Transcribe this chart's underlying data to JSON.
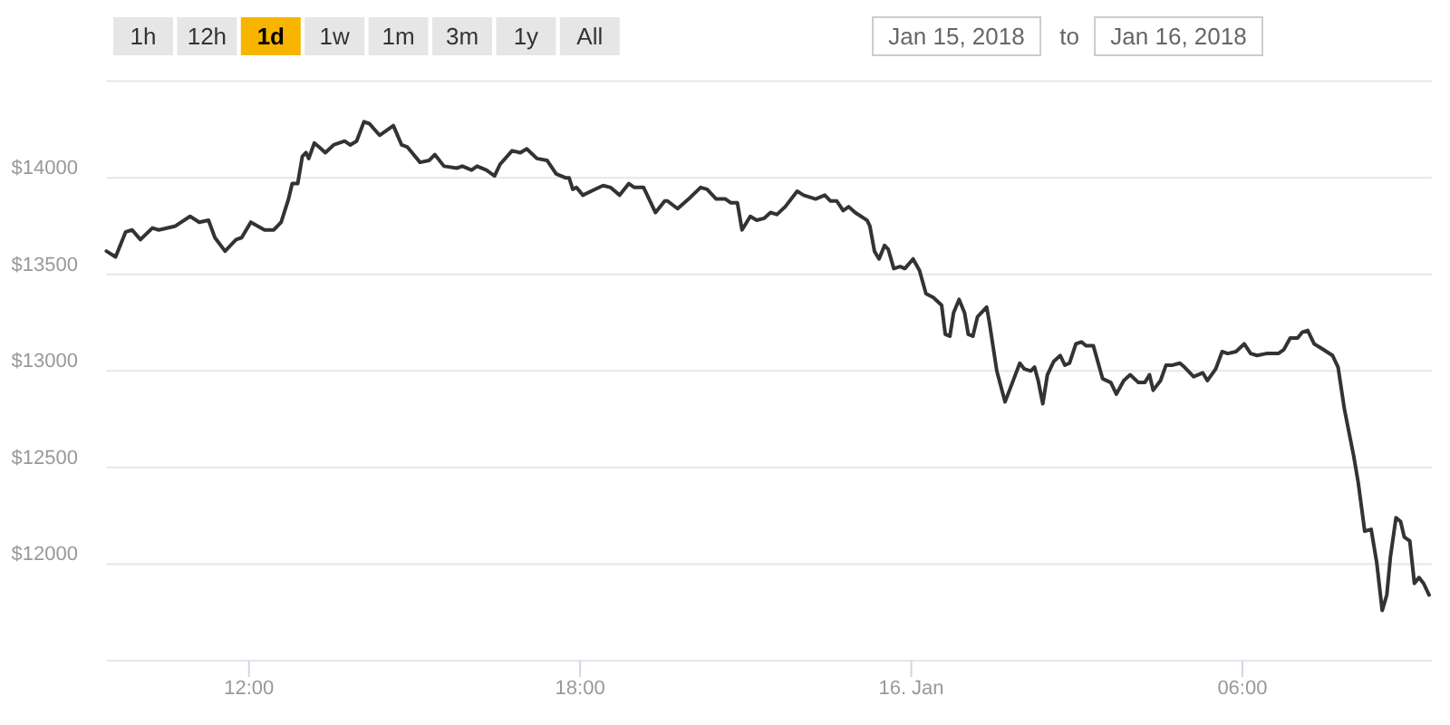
{
  "chart_data": {
    "type": "line",
    "x": [
      "2018-01-15T09:25",
      "2018-01-15T09:35",
      "2018-01-15T09:46",
      "2018-01-15T09:53",
      "2018-01-15T10:02",
      "2018-01-15T10:15",
      "2018-01-15T10:22",
      "2018-01-15T10:40",
      "2018-01-15T10:56",
      "2018-01-15T11:06",
      "2018-01-15T11:16",
      "2018-01-15T11:23",
      "2018-01-15T11:34",
      "2018-01-15T11:46",
      "2018-01-15T11:52",
      "2018-01-15T12:02",
      "2018-01-15T12:17",
      "2018-01-15T12:27",
      "2018-01-15T12:35",
      "2018-01-15T12:43",
      "2018-01-15T12:47",
      "2018-01-15T12:53",
      "2018-01-15T12:58",
      "2018-01-15T13:02",
      "2018-01-15T13:05",
      "2018-01-15T13:11",
      "2018-01-15T13:16",
      "2018-01-15T13:23",
      "2018-01-15T13:32",
      "2018-01-15T13:44",
      "2018-01-15T13:50",
      "2018-01-15T13:57",
      "2018-01-15T14:05",
      "2018-01-15T14:11",
      "2018-01-15T14:22",
      "2018-01-15T14:37",
      "2018-01-15T14:46",
      "2018-01-15T14:52",
      "2018-01-15T15:06",
      "2018-01-15T15:16",
      "2018-01-15T15:22",
      "2018-01-15T15:32",
      "2018-01-15T15:46",
      "2018-01-15T15:52",
      "2018-01-15T16:02",
      "2018-01-15T16:08",
      "2018-01-15T16:18",
      "2018-01-15T16:27",
      "2018-01-15T16:33",
      "2018-01-15T16:46",
      "2018-01-15T16:55",
      "2018-01-15T17:02",
      "2018-01-15T17:13",
      "2018-01-15T17:24",
      "2018-01-15T17:34",
      "2018-01-15T17:44",
      "2018-01-15T17:48",
      "2018-01-15T17:52",
      "2018-01-15T17:56",
      "2018-01-15T18:03",
      "2018-01-15T18:16",
      "2018-01-15T18:25",
      "2018-01-15T18:33",
      "2018-01-15T18:43",
      "2018-01-15T18:53",
      "2018-01-15T18:59",
      "2018-01-15T19:09",
      "2018-01-15T19:22",
      "2018-01-15T19:32",
      "2018-01-15T19:35",
      "2018-01-15T19:46",
      "2018-01-15T19:58",
      "2018-01-15T20:11",
      "2018-01-15T20:18",
      "2018-01-15T20:28",
      "2018-01-15T20:38",
      "2018-01-15T20:44",
      "2018-01-15T20:51",
      "2018-01-15T20:56",
      "2018-01-15T21:05",
      "2018-01-15T21:12",
      "2018-01-15T21:20",
      "2018-01-15T21:27",
      "2018-01-15T21:34",
      "2018-01-15T21:43",
      "2018-01-15T21:56",
      "2018-01-15T22:03",
      "2018-01-15T22:16",
      "2018-01-15T22:26",
      "2018-01-15T22:32",
      "2018-01-15T22:39",
      "2018-01-15T22:46",
      "2018-01-15T22:52",
      "2018-01-15T22:59",
      "2018-01-15T23:12",
      "2018-01-15T23:15",
      "2018-01-15T23:20",
      "2018-01-15T23:25",
      "2018-01-15T23:31",
      "2018-01-15T23:35",
      "2018-01-15T23:41",
      "2018-01-15T23:48",
      "2018-01-15T23:53",
      "2018-01-16T00:02",
      "2018-01-16T00:09",
      "2018-01-16T00:16",
      "2018-01-16T00:24",
      "2018-01-16T00:33",
      "2018-01-16T00:37",
      "2018-01-16T00:42",
      "2018-01-16T00:46",
      "2018-01-16T00:52",
      "2018-01-16T00:58",
      "2018-01-16T01:02",
      "2018-01-16T01:07",
      "2018-01-16T01:12",
      "2018-01-16T01:22",
      "2018-01-16T01:25",
      "2018-01-16T01:33",
      "2018-01-16T01:42",
      "2018-01-16T01:50",
      "2018-01-16T01:58",
      "2018-01-16T02:03",
      "2018-01-16T02:10",
      "2018-01-16T02:14",
      "2018-01-16T02:18",
      "2018-01-16T02:23",
      "2018-01-16T02:28",
      "2018-01-16T02:35",
      "2018-01-16T02:42",
      "2018-01-16T02:47",
      "2018-01-16T02:52",
      "2018-01-16T02:59",
      "2018-01-16T03:05",
      "2018-01-16T03:10",
      "2018-01-16T03:18",
      "2018-01-16T03:28",
      "2018-01-16T03:37",
      "2018-01-16T03:43",
      "2018-01-16T03:51",
      "2018-01-16T03:58",
      "2018-01-16T04:07",
      "2018-01-16T04:14",
      "2018-01-16T04:19",
      "2018-01-16T04:23",
      "2018-01-16T04:31",
      "2018-01-16T04:37",
      "2018-01-16T04:44",
      "2018-01-16T04:52",
      "2018-01-16T04:57",
      "2018-01-16T05:07",
      "2018-01-16T05:17",
      "2018-01-16T05:22",
      "2018-01-16T05:31",
      "2018-01-16T05:38",
      "2018-01-16T05:44",
      "2018-01-16T05:53",
      "2018-01-16T06:02",
      "2018-01-16T06:09",
      "2018-01-16T06:16",
      "2018-01-16T06:26",
      "2018-01-16T06:32",
      "2018-01-16T06:39",
      "2018-01-16T06:45",
      "2018-01-16T06:52",
      "2018-01-16T07:00",
      "2018-01-16T07:05",
      "2018-01-16T07:11",
      "2018-01-16T07:18",
      "2018-01-16T07:25",
      "2018-01-16T07:38",
      "2018-01-16T07:44",
      "2018-01-16T07:51",
      "2018-01-16T08:01",
      "2018-01-16T08:06",
      "2018-01-16T08:13",
      "2018-01-16T08:20",
      "2018-01-16T08:26",
      "2018-01-16T08:32",
      "2018-01-16T08:37",
      "2018-01-16T08:41",
      "2018-01-16T08:47",
      "2018-01-16T08:52",
      "2018-01-16T08:56",
      "2018-01-16T09:02",
      "2018-01-16T09:07",
      "2018-01-16T09:12",
      "2018-01-16T09:17",
      "2018-01-16T09:23"
    ],
    "series": [
      {
        "color": "#333333",
        "values": [
          13620,
          13590,
          13720,
          13730,
          13680,
          13740,
          13730,
          13750,
          13800,
          13770,
          13780,
          13690,
          13620,
          13680,
          13690,
          13770,
          13730,
          13730,
          13770,
          13890,
          13970,
          13970,
          14110,
          14130,
          14100,
          14180,
          14160,
          14130,
          14170,
          14190,
          14170,
          14190,
          14290,
          14280,
          14220,
          14270,
          14170,
          14160,
          14080,
          14090,
          14120,
          14060,
          14050,
          14060,
          14040,
          14060,
          14040,
          14010,
          14070,
          14140,
          14130,
          14150,
          14100,
          14090,
          14020,
          14000,
          14000,
          13940,
          13950,
          13910,
          13940,
          13960,
          13950,
          13910,
          13970,
          13950,
          13950,
          13820,
          13880,
          13880,
          13840,
          13890,
          13950,
          13940,
          13890,
          13890,
          13870,
          13870,
          13730,
          13800,
          13780,
          13790,
          13820,
          13810,
          13850,
          13930,
          13910,
          13890,
          13910,
          13880,
          13880,
          13830,
          13850,
          13820,
          13780,
          13750,
          13620,
          13580,
          13650,
          13630,
          13530,
          13540,
          13530,
          13580,
          13520,
          13400,
          13380,
          13340,
          13190,
          13180,
          13300,
          13370,
          13300,
          13190,
          13180,
          13280,
          13330,
          13250,
          13000,
          12840,
          12940,
          13040,
          13010,
          13000,
          13020,
          12950,
          12830,
          12980,
          13050,
          13080,
          13030,
          13040,
          13140,
          13150,
          13130,
          13130,
          12960,
          12940,
          12880,
          12950,
          12980,
          12940,
          12940,
          12980,
          12900,
          12950,
          13030,
          13030,
          13040,
          13020,
          12970,
          12990,
          12950,
          13010,
          13100,
          13090,
          13100,
          13140,
          13090,
          13080,
          13090,
          13090,
          13090,
          13110,
          13170,
          13170,
          13200,
          13210,
          13140,
          13120,
          13080,
          13020,
          12800,
          12560,
          12420,
          12170,
          12180,
          12010,
          11760,
          11840,
          12040,
          12240,
          12220,
          12140,
          12120,
          11900,
          11930,
          11900,
          11840
        ]
      }
    ],
    "xlim": [
      "2018-01-15T09:25",
      "2018-01-16T09:26"
    ],
    "ylim": [
      11500,
      14500
    ],
    "xticks": [
      {
        "value": "2018-01-15T12:00",
        "label": "12:00"
      },
      {
        "value": "2018-01-15T18:00",
        "label": "18:00"
      },
      {
        "value": "2018-01-16T00:00",
        "label": "16. Jan"
      },
      {
        "value": "2018-01-16T06:00",
        "label": "06:00"
      }
    ],
    "yticks": [
      {
        "value": 12000,
        "label": "$12000"
      },
      {
        "value": 12500,
        "label": "$12500"
      },
      {
        "value": 13000,
        "label": "$13000"
      },
      {
        "value": 13500,
        "label": "$13500"
      },
      {
        "value": 14000,
        "label": "$14000"
      },
      {
        "value": 14500,
        "label": null
      }
    ],
    "grid": "y",
    "annotations": [
      "1h",
      "12h",
      "1d",
      "1w",
      "1m",
      "3m",
      "1y",
      "All",
      "Jan 15, 2018",
      "to",
      "Jan 16, 2018"
    ]
  }
}
